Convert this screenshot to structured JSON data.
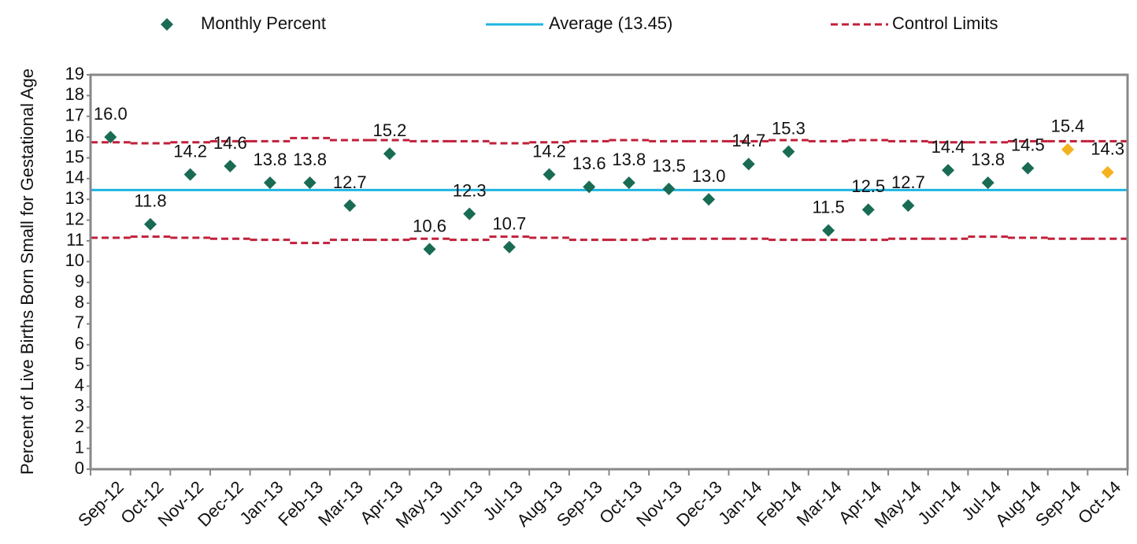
{
  "chart_data": {
    "type": "control",
    "categories": [
      "Sep-12",
      "Oct-12",
      "Nov-12",
      "Dec-12",
      "Jan-13",
      "Feb-13",
      "Mar-13",
      "Apr-13",
      "May-13",
      "Jun-13",
      "Jul-13",
      "Aug-13",
      "Sep-13",
      "Oct-13",
      "Nov-13",
      "Dec-13",
      "Jan-14",
      "Feb-14",
      "Mar-14",
      "Apr-14",
      "May-14",
      "Jun-14",
      "Jul-14",
      "Aug-14",
      "Sep-14",
      "Oct-14"
    ],
    "y_label": "Percent of Live Births Born Small for Gestational Age",
    "series": [
      {
        "name": "Monthly Percent",
        "color": "#1a6b54",
        "values": [
          16.0,
          11.8,
          14.2,
          14.6,
          13.8,
          13.8,
          12.7,
          15.2,
          10.6,
          12.3,
          10.7,
          14.2,
          13.6,
          13.8,
          13.5,
          13.0,
          14.7,
          15.3,
          11.5,
          12.5,
          12.7,
          14.4,
          13.8,
          14.5,
          15.4,
          14.3
        ],
        "value_labels": [
          "16.0",
          "11.8",
          "14.2",
          "14.6",
          "13.8",
          "13.8",
          "12.7",
          "15.2",
          "10.6",
          "12.3",
          "10.7",
          "14.2",
          "13.6",
          "13.8",
          "13.5",
          "13.0",
          "14.7",
          "15.3",
          "11.5",
          "12.5",
          "12.7",
          "14.4",
          "13.8",
          "14.5",
          "15.4",
          "14.3"
        ],
        "point_colors": [
          "#1a6b54",
          "#1a6b54",
          "#1a6b54",
          "#1a6b54",
          "#1a6b54",
          "#1a6b54",
          "#1a6b54",
          "#1a6b54",
          "#1a6b54",
          "#1a6b54",
          "#1a6b54",
          "#1a6b54",
          "#1a6b54",
          "#1a6b54",
          "#1a6b54",
          "#1a6b54",
          "#1a6b54",
          "#1a6b54",
          "#1a6b54",
          "#1a6b54",
          "#1a6b54",
          "#1a6b54",
          "#1a6b54",
          "#1a6b54",
          "#f5b21f",
          "#f5b21f"
        ]
      }
    ],
    "average": {
      "name": "Average (13.45)",
      "value": 13.45,
      "color": "#1fb4e0"
    },
    "control_limits": {
      "name": "Control Limits",
      "color": "#c0203a",
      "upper": [
        15.75,
        15.7,
        15.75,
        15.8,
        15.8,
        15.95,
        15.85,
        15.85,
        15.8,
        15.8,
        15.7,
        15.75,
        15.8,
        15.85,
        15.8,
        15.8,
        15.8,
        15.85,
        15.8,
        15.85,
        15.8,
        15.75,
        15.75,
        15.8,
        15.8,
        15.8
      ],
      "lower": [
        11.15,
        11.2,
        11.15,
        11.1,
        11.05,
        10.9,
        11.05,
        11.05,
        11.1,
        11.05,
        11.2,
        11.15,
        11.05,
        11.05,
        11.1,
        11.1,
        11.1,
        11.05,
        11.05,
        11.05,
        11.1,
        11.1,
        11.2,
        11.15,
        11.1,
        11.1
      ]
    },
    "ylim": [
      0,
      19
    ],
    "yticks": [
      0,
      1,
      2,
      3,
      4,
      5,
      6,
      7,
      8,
      9,
      10,
      11,
      12,
      13,
      14,
      15,
      16,
      17,
      18,
      19
    ]
  }
}
